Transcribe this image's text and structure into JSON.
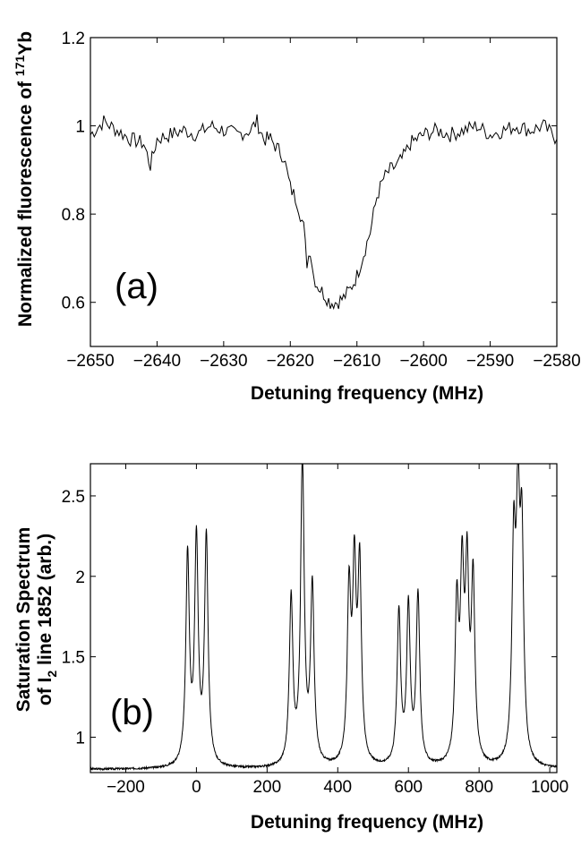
{
  "chart_data": [
    {
      "type": "line",
      "panel_label": "(a)",
      "xlabel": "Detuning frequency  (MHz)",
      "ylabel": "Normalized fluorescence of ",
      "ylabel_sup": "171",
      "ylabel_suffix": "Yb",
      "xlim": [
        -2650,
        -2580
      ],
      "ylim": [
        0.5,
        1.2
      ],
      "xticks": [
        -2650,
        -2640,
        -2630,
        -2620,
        -2610,
        -2600,
        -2590,
        -2580
      ],
      "xtick_labels": [
        "−2650",
        "−2640",
        "−2630",
        "−2620",
        "−2610",
        "−2600",
        "−2590",
        "−2580"
      ],
      "yticks": [
        0.6,
        0.8,
        1.0,
        1.2
      ],
      "ytick_labels": [
        "0.6",
        "0.8",
        "1",
        "1.2"
      ],
      "grid": false,
      "series": [
        {
          "x": [
            -2650,
            -2648,
            -2646,
            -2644,
            -2642,
            -2641,
            -2640,
            -2638,
            -2636,
            -2634,
            -2632,
            -2630,
            -2628,
            -2626,
            -2625,
            -2624,
            -2623,
            -2622,
            -2621,
            -2620,
            -2619,
            -2618,
            -2617.5,
            -2617,
            -2616.5,
            -2616,
            -2615,
            -2614,
            -2613,
            -2612,
            -2611,
            -2610,
            -2609,
            -2608,
            -2607,
            -2606,
            -2605,
            -2604,
            -2603,
            -2602,
            -2601,
            -2600,
            -2598,
            -2596,
            -2594,
            -2592,
            -2590,
            -2588,
            -2586,
            -2584,
            -2582,
            -2580
          ],
          "y": [
            0.98,
            1.01,
            0.99,
            0.97,
            0.96,
            0.91,
            0.97,
            0.98,
            0.99,
            0.98,
            1.0,
            0.99,
            0.98,
            0.99,
            1.01,
            0.97,
            0.97,
            0.95,
            0.93,
            0.86,
            0.83,
            0.77,
            0.69,
            0.72,
            0.66,
            0.64,
            0.62,
            0.6,
            0.6,
            0.61,
            0.63,
            0.66,
            0.71,
            0.76,
            0.84,
            0.88,
            0.9,
            0.91,
            0.93,
            0.96,
            0.97,
            0.98,
            0.99,
            0.98,
            0.99,
            1.0,
            0.98,
            0.99,
            1.0,
            0.99,
            1.0,
            0.97
          ]
        }
      ]
    },
    {
      "type": "line",
      "panel_label": "(b)",
      "xlabel": "Detuning frequency  (MHz)",
      "ylabel_line1": "Saturation Spectrum",
      "ylabel_line2_pre": "of I",
      "ylabel_line2_sub": "2",
      "ylabel_line2_post": " line 1852  (arb.)",
      "xlim": [
        -300,
        1020
      ],
      "ylim": [
        0.78,
        2.7
      ],
      "xticks": [
        -200,
        0,
        200,
        400,
        600,
        800,
        1000
      ],
      "xtick_labels": [
        "−200",
        "0",
        "200",
        "400",
        "600",
        "800",
        "1000"
      ],
      "yticks": [
        1.0,
        1.5,
        2.0,
        2.5
      ],
      "ytick_labels": [
        "1",
        "1.5",
        "2",
        "2.5"
      ],
      "grid": false,
      "baseline": 0.8,
      "peaks": [
        {
          "x": -25,
          "h": 1.3
        },
        {
          "x": 0,
          "h": 1.38
        },
        {
          "x": 28,
          "h": 1.42
        },
        {
          "x": 268,
          "h": 1.03
        },
        {
          "x": 300,
          "h": 1.9
        },
        {
          "x": 328,
          "h": 1.1
        },
        {
          "x": 432,
          "h": 1.05
        },
        {
          "x": 447,
          "h": 1.14
        },
        {
          "x": 462,
          "h": 1.2
        },
        {
          "x": 573,
          "h": 0.95
        },
        {
          "x": 600,
          "h": 0.97
        },
        {
          "x": 627,
          "h": 1.05
        },
        {
          "x": 737,
          "h": 0.95
        },
        {
          "x": 752,
          "h": 1.1
        },
        {
          "x": 766,
          "h": 1.13
        },
        {
          "x": 783,
          "h": 1.12
        },
        {
          "x": 898,
          "h": 1.28
        },
        {
          "x": 910,
          "h": 1.42
        },
        {
          "x": 921,
          "h": 1.32
        }
      ]
    }
  ]
}
